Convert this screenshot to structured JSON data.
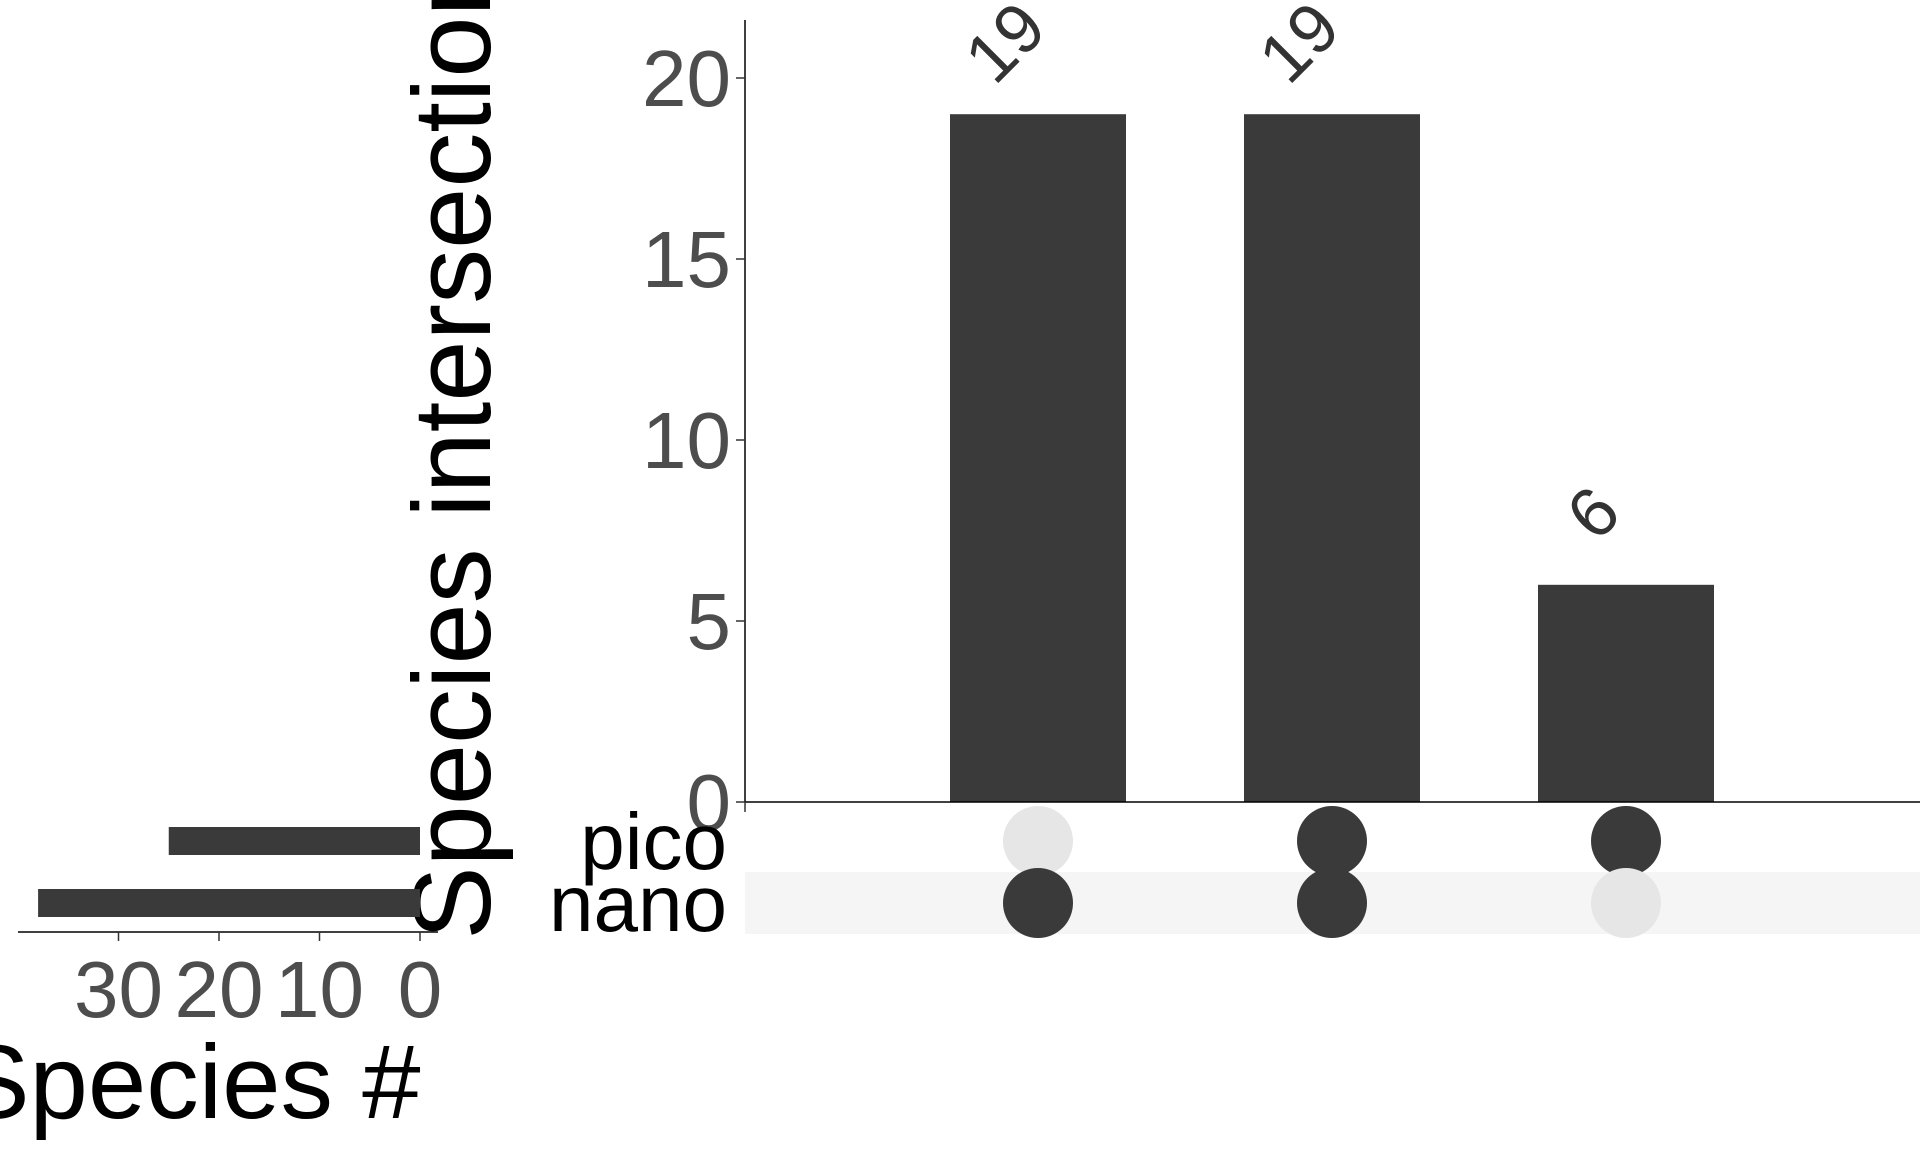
{
  "chart_data": {
    "type": "upset",
    "intersections": {
      "type": "bar",
      "ylabel": "Species intersections",
      "ylim": [
        0,
        22
      ],
      "yticks": [
        0,
        5,
        10,
        15,
        20
      ],
      "values": [
        19,
        19,
        6
      ],
      "value_labels": [
        "19",
        "19",
        "6"
      ],
      "bar_color": "#3a3a3a"
    },
    "matrix": {
      "sets": [
        "pico",
        "nano"
      ],
      "membership": [
        {
          "pico": false,
          "nano": true
        },
        {
          "pico": true,
          "nano": true
        },
        {
          "pico": true,
          "nano": false
        }
      ],
      "active_color": "#3a3a3a",
      "inactive_color": "#e6e6e6",
      "stripe_color": "#f5f5f5"
    },
    "set_sizes": {
      "type": "bar",
      "orientation": "horizontal-reversed",
      "xlabel": "Species #",
      "xticks": [
        30,
        20,
        10,
        0
      ],
      "xtick_labels": [
        "30",
        "20",
        "10",
        "0"
      ],
      "xlim": [
        0,
        40
      ],
      "sets": [
        "pico",
        "nano"
      ],
      "values": [
        25,
        38
      ],
      "bar_color": "#3a3a3a"
    }
  }
}
